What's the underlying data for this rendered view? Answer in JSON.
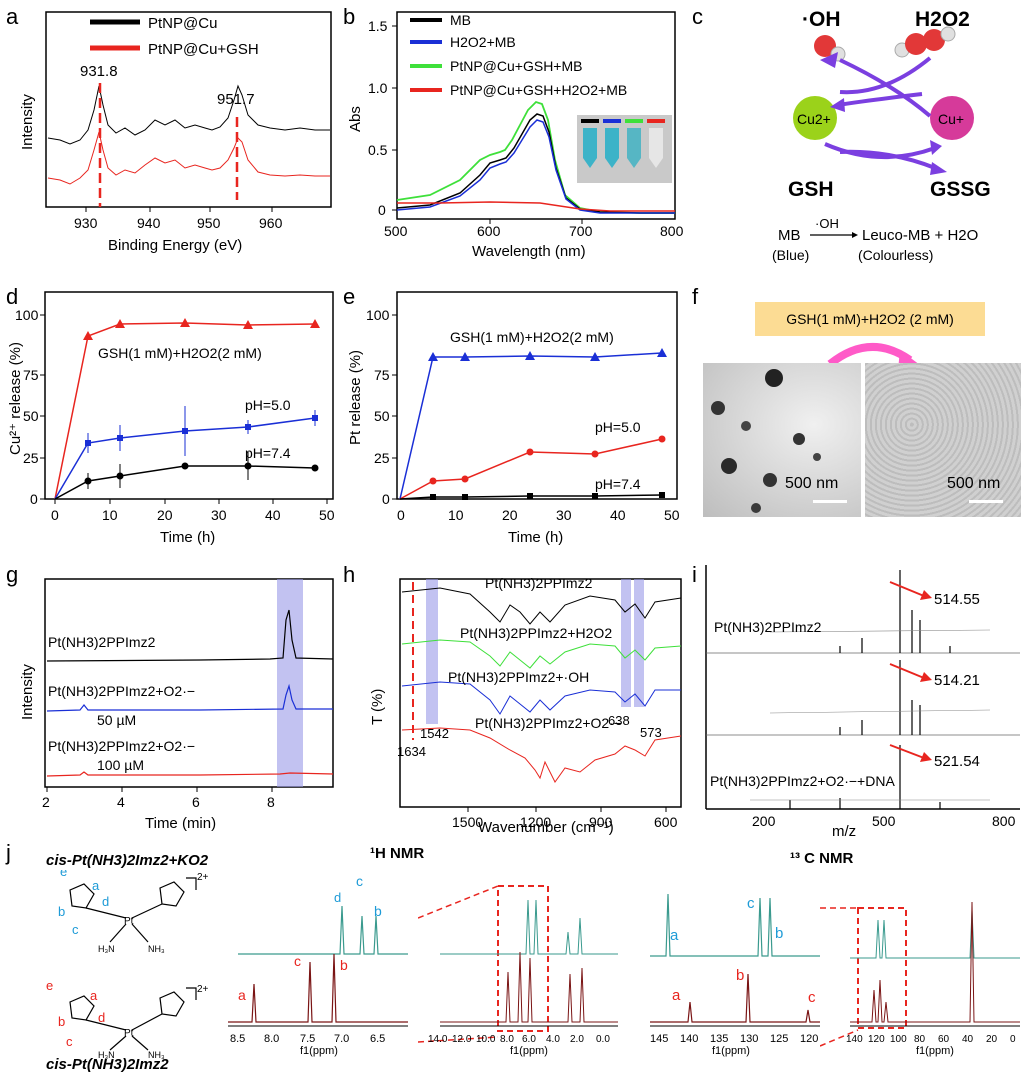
{
  "panel_letters": [
    "a",
    "b",
    "c",
    "d",
    "e",
    "f",
    "g",
    "h",
    "i",
    "j"
  ],
  "colors": {
    "black": "#000000",
    "red": "#e8251f",
    "blue": "#1a2fd6",
    "green": "#3ee03a",
    "teal": "#3a9a8e",
    "darkred": "#7a1414",
    "highlight": "#9a9ae8",
    "purple": "#7b3fe0",
    "magenta": "#d63a9a",
    "lime": "#9bd21a"
  },
  "a": {
    "xlabel": "Binding Energy (eV)",
    "ylabel": "Intensity",
    "xticks": [
      "930",
      "940",
      "950",
      "960"
    ],
    "legend": [
      "PtNP@Cu",
      "PtNP@Cu+GSH"
    ],
    "peaks": [
      "931.8",
      "951.7"
    ]
  },
  "b": {
    "xlabel": "Wavelength (nm)",
    "ylabel": "Abs",
    "xticks": [
      "500",
      "600",
      "700",
      "800"
    ],
    "yticks": [
      "0",
      "0.5",
      "1.0",
      "1.5"
    ],
    "legend": [
      "MB",
      "H2O2+MB",
      "PtNP@Cu+GSH+MB",
      "PtNP@Cu+GSH+H2O2+MB"
    ]
  },
  "c": {
    "oh": "·OH",
    "h2o2": "H2O2",
    "cu2": "Cu2+",
    "cu1": "Cu+",
    "gsh": "GSH",
    "gssg": "GSSG",
    "eq_left": "MB",
    "eq_arrow": "·OH",
    "eq_right": "Leuco-MB + H2O",
    "eq_left_sub": "(Blue)",
    "eq_right_sub": "(Colourless)"
  },
  "d": {
    "xlabel": "Time (h)",
    "ylabel": "Cu²⁺ release (%)",
    "xticks": [
      "0",
      "10",
      "20",
      "30",
      "40",
      "50"
    ],
    "yticks": [
      "0",
      "25",
      "50",
      "75",
      "100"
    ],
    "labels": [
      "GSH(1 mM)+H2O2(2 mM)",
      "pH=5.0",
      "pH=7.4"
    ]
  },
  "e": {
    "xlabel": "Time (h)",
    "ylabel": "Pt release (%)",
    "xticks": [
      "0",
      "10",
      "20",
      "30",
      "40",
      "50"
    ],
    "yticks": [
      "0",
      "25",
      "50",
      "75",
      "100"
    ],
    "labels": [
      "GSH(1 mM)+H2O2(2 mM)",
      "pH=5.0",
      "pH=7.4"
    ]
  },
  "f": {
    "banner": "GSH(1 mM)+H2O2 (2 mM)",
    "scale_left": "500 nm",
    "scale_right": "500 nm"
  },
  "g": {
    "xlabel": "Time (min)",
    "ylabel": "Intensity",
    "xticks": [
      "2",
      "4",
      "6",
      "8"
    ],
    "traces": [
      "Pt(NH3)2PPImz2",
      "Pt(NH3)2PPImz2+O2·−",
      "50 µM",
      "Pt(NH3)2PPImz2+O2·−",
      "100 µM"
    ]
  },
  "h": {
    "xlabel": "Wavenumber (cm⁻¹)",
    "ylabel": "T (%)",
    "xticks": [
      "1500",
      "1200",
      "900",
      "600"
    ],
    "traces": [
      "Pt(NH3)2PPImz2",
      "Pt(NH3)2PPImz2+H2O2",
      "Pt(NH3)2PPImz2+·OH",
      "Pt(NH3)2PPImz2+O2·−"
    ],
    "marks": [
      "1634",
      "1542",
      "638",
      "573"
    ]
  },
  "i": {
    "xlabel": "m/z",
    "xticks": [
      "200",
      "500",
      "800"
    ],
    "traces": [
      "Pt(NH3)2PPImz2",
      "Pt(NH3)2PPImz2+O2·−+DNA"
    ],
    "peaks": [
      "514.55",
      "514.21",
      "521.54"
    ]
  },
  "j": {
    "title_top": "cis-Pt(NH3)2Imz2+KO2",
    "title_bottom": "cis-Pt(NH3)2Imz2",
    "h_nmr": "¹H NMR",
    "c_nmr": "¹³ C NMR",
    "xlabel": "f1(ppm)",
    "h_zoom_ticks": [
      "8.5",
      "8.0",
      "7.5",
      "7.0",
      "6.5"
    ],
    "h_full_ticks": [
      "14.0",
      "12.0",
      "10.0",
      "8.0",
      "6.0",
      "4.0",
      "2.0",
      "0.0"
    ],
    "c_zoom_ticks": [
      "145",
      "140",
      "135",
      "130",
      "125",
      "120"
    ],
    "c_full_ticks": [
      "140",
      "120",
      "100",
      "80",
      "60",
      "40",
      "20",
      "0"
    ],
    "letters": [
      "a",
      "b",
      "c",
      "d",
      "e"
    ]
  }
}
